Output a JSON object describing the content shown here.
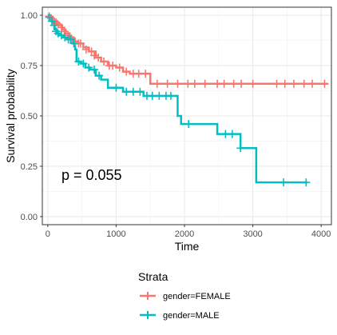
{
  "chart_data": {
    "type": "line",
    "subtype": "kaplan-meier",
    "title": "",
    "xlabel": "Time",
    "ylabel": "Survival probability",
    "xlim": [
      -80,
      4150
    ],
    "ylim": [
      -0.04,
      1.04
    ],
    "xticks": [
      0,
      1000,
      2000,
      3000,
      4000
    ],
    "yticks": [
      0.0,
      0.25,
      0.5,
      0.75,
      1.0
    ],
    "xtick_labels": [
      "0",
      "1000",
      "2000",
      "3000",
      "4000"
    ],
    "ytick_labels": [
      "0.00",
      "0.25",
      "0.50",
      "0.75",
      "1.00"
    ],
    "grid": true,
    "annotation": "p = 0.055",
    "legend": {
      "title": "Strata",
      "position": "bottom"
    },
    "series": [
      {
        "name": "gender=FEMALE",
        "color": "#F8766D",
        "steps": [
          [
            0,
            1.0
          ],
          [
            30,
            0.99
          ],
          [
            60,
            0.98
          ],
          [
            90,
            0.97
          ],
          [
            130,
            0.96
          ],
          [
            170,
            0.95
          ],
          [
            210,
            0.93
          ],
          [
            260,
            0.91
          ],
          [
            320,
            0.89
          ],
          [
            380,
            0.87
          ],
          [
            440,
            0.86
          ],
          [
            520,
            0.84
          ],
          [
            600,
            0.82
          ],
          [
            700,
            0.79
          ],
          [
            780,
            0.77
          ],
          [
            880,
            0.75
          ],
          [
            1000,
            0.74
          ],
          [
            1100,
            0.72
          ],
          [
            1200,
            0.71
          ],
          [
            1500,
            0.66
          ],
          [
            4100,
            0.66
          ]
        ],
        "censors": [
          [
            20,
            0.995
          ],
          [
            50,
            0.985
          ],
          [
            80,
            0.975
          ],
          [
            120,
            0.965
          ],
          [
            150,
            0.955
          ],
          [
            200,
            0.94
          ],
          [
            240,
            0.92
          ],
          [
            300,
            0.9
          ],
          [
            350,
            0.88
          ],
          [
            400,
            0.87
          ],
          [
            450,
            0.86
          ],
          [
            480,
            0.86
          ],
          [
            560,
            0.83
          ],
          [
            640,
            0.82
          ],
          [
            680,
            0.8
          ],
          [
            740,
            0.79
          ],
          [
            820,
            0.77
          ],
          [
            900,
            0.75
          ],
          [
            950,
            0.75
          ],
          [
            1050,
            0.74
          ],
          [
            1150,
            0.72
          ],
          [
            1250,
            0.71
          ],
          [
            1330,
            0.71
          ],
          [
            1430,
            0.71
          ],
          [
            1600,
            0.66
          ],
          [
            1750,
            0.66
          ],
          [
            1900,
            0.66
          ],
          [
            2050,
            0.66
          ],
          [
            2150,
            0.66
          ],
          [
            2300,
            0.66
          ],
          [
            2480,
            0.66
          ],
          [
            2580,
            0.66
          ],
          [
            2720,
            0.66
          ],
          [
            2830,
            0.66
          ],
          [
            3000,
            0.66
          ],
          [
            3350,
            0.66
          ],
          [
            3470,
            0.66
          ],
          [
            3600,
            0.66
          ],
          [
            3750,
            0.66
          ],
          [
            3870,
            0.66
          ],
          [
            4050,
            0.66
          ]
        ]
      },
      {
        "name": "gender=MALE",
        "color": "#00BFC4",
        "steps": [
          [
            0,
            1.0
          ],
          [
            30,
            0.98
          ],
          [
            70,
            0.96
          ],
          [
            100,
            0.93
          ],
          [
            130,
            0.91
          ],
          [
            170,
            0.9
          ],
          [
            230,
            0.89
          ],
          [
            280,
            0.88
          ],
          [
            360,
            0.86
          ],
          [
            400,
            0.83
          ],
          [
            420,
            0.77
          ],
          [
            480,
            0.76
          ],
          [
            550,
            0.74
          ],
          [
            620,
            0.73
          ],
          [
            700,
            0.7
          ],
          [
            780,
            0.68
          ],
          [
            880,
            0.64
          ],
          [
            1100,
            0.62
          ],
          [
            1400,
            0.6
          ],
          [
            1900,
            0.5
          ],
          [
            1950,
            0.46
          ],
          [
            2480,
            0.41
          ],
          [
            2820,
            0.34
          ],
          [
            3050,
            0.17
          ],
          [
            3800,
            0.17
          ]
        ],
        "censors": [
          [
            20,
            0.99
          ],
          [
            60,
            0.97
          ],
          [
            90,
            0.95
          ],
          [
            120,
            0.92
          ],
          [
            150,
            0.91
          ],
          [
            200,
            0.9
          ],
          [
            250,
            0.89
          ],
          [
            300,
            0.88
          ],
          [
            330,
            0.88
          ],
          [
            380,
            0.86
          ],
          [
            450,
            0.77
          ],
          [
            520,
            0.76
          ],
          [
            600,
            0.74
          ],
          [
            680,
            0.73
          ],
          [
            750,
            0.7
          ],
          [
            1000,
            0.64
          ],
          [
            1150,
            0.62
          ],
          [
            1250,
            0.62
          ],
          [
            1350,
            0.62
          ],
          [
            1450,
            0.6
          ],
          [
            1530,
            0.6
          ],
          [
            1630,
            0.6
          ],
          [
            1730,
            0.6
          ],
          [
            1800,
            0.6
          ],
          [
            2060,
            0.46
          ],
          [
            2600,
            0.41
          ],
          [
            2700,
            0.41
          ],
          [
            2820,
            0.34
          ],
          [
            3450,
            0.17
          ],
          [
            3780,
            0.17
          ]
        ]
      }
    ]
  }
}
